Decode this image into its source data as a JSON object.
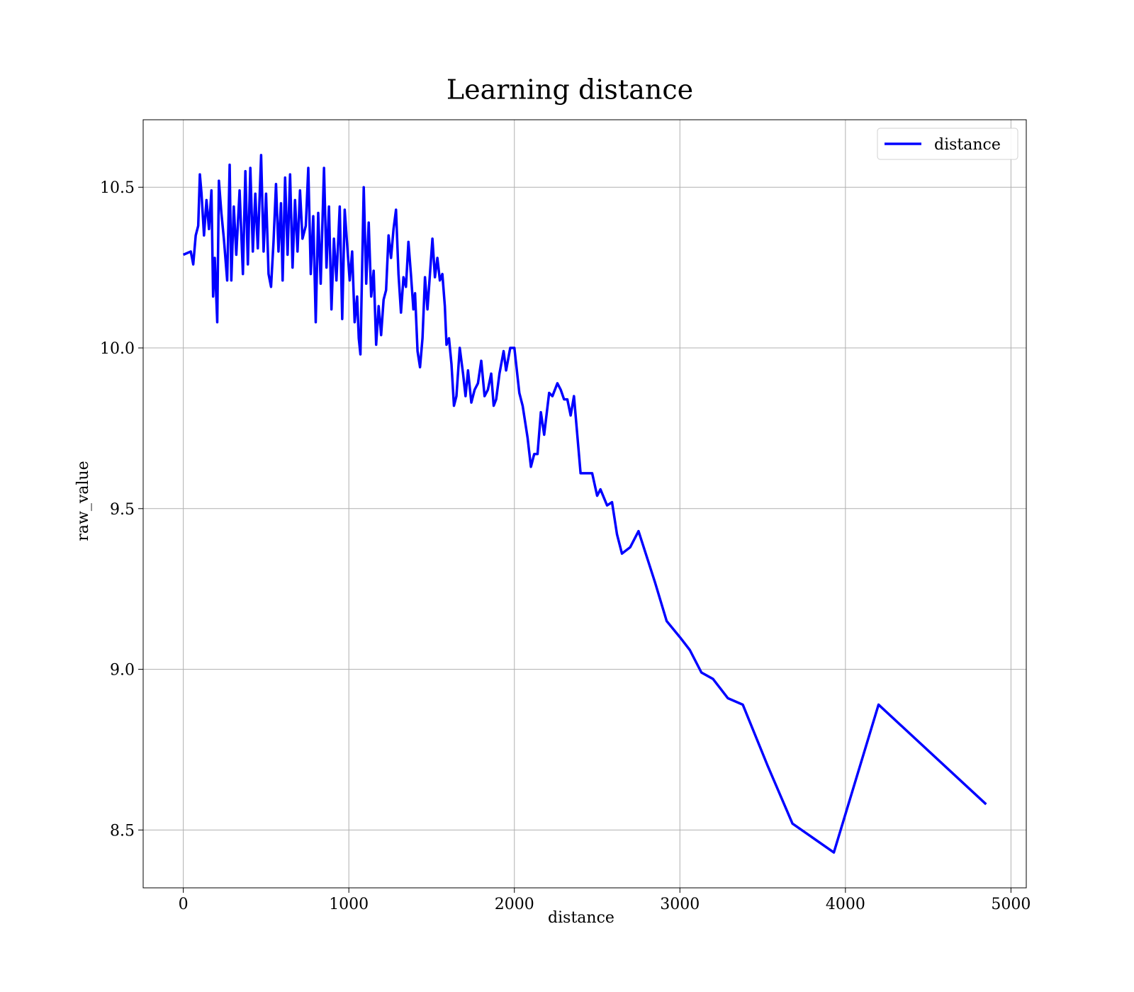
{
  "chart_data": {
    "type": "line",
    "title": "Learning distance",
    "xlabel": "distance",
    "ylabel": "raw_value",
    "x": [
      0,
      45,
      60,
      75,
      90,
      100,
      110,
      125,
      140,
      155,
      170,
      180,
      190,
      205,
      215,
      230,
      245,
      265,
      280,
      290,
      305,
      320,
      340,
      360,
      375,
      390,
      405,
      420,
      435,
      450,
      470,
      485,
      500,
      515,
      530,
      545,
      560,
      575,
      590,
      600,
      615,
      630,
      645,
      660,
      675,
      690,
      705,
      720,
      740,
      755,
      770,
      785,
      800,
      815,
      830,
      850,
      865,
      880,
      895,
      910,
      925,
      945,
      960,
      975,
      990,
      1005,
      1020,
      1035,
      1050,
      1060,
      1070,
      1090,
      1105,
      1120,
      1135,
      1150,
      1165,
      1180,
      1195,
      1210,
      1225,
      1240,
      1255,
      1270,
      1285,
      1300,
      1315,
      1330,
      1345,
      1360,
      1375,
      1390,
      1400,
      1415,
      1430,
      1445,
      1460,
      1475,
      1490,
      1505,
      1520,
      1535,
      1550,
      1565,
      1580,
      1590,
      1605,
      1620,
      1635,
      1650,
      1670,
      1690,
      1705,
      1720,
      1740,
      1760,
      1780,
      1800,
      1820,
      1840,
      1860,
      1875,
      1890,
      1910,
      1935,
      1950,
      1975,
      2000,
      2030,
      2050,
      2080,
      2100,
      2120,
      2140,
      2160,
      2180,
      2210,
      2230,
      2260,
      2280,
      2300,
      2320,
      2340,
      2360,
      2400,
      2440,
      2470,
      2500,
      2520,
      2560,
      2590,
      2620,
      2650,
      2700,
      2750,
      2850,
      2920,
      3000,
      3060,
      3130,
      3200,
      3290,
      3380,
      3530,
      3680,
      3930,
      4200,
      4850
    ],
    "series": [
      {
        "name": "distance",
        "color": "#0000ff",
        "values": [
          10.29,
          10.3,
          10.26,
          10.35,
          10.38,
          10.54,
          10.48,
          10.35,
          10.46,
          10.37,
          10.49,
          10.16,
          10.28,
          10.08,
          10.52,
          10.42,
          10.34,
          10.21,
          10.57,
          10.21,
          10.44,
          10.29,
          10.49,
          10.23,
          10.55,
          10.26,
          10.56,
          10.3,
          10.48,
          10.31,
          10.6,
          10.3,
          10.48,
          10.23,
          10.19,
          10.33,
          10.51,
          10.3,
          10.45,
          10.21,
          10.53,
          10.29,
          10.54,
          10.25,
          10.46,
          10.3,
          10.49,
          10.34,
          10.38,
          10.56,
          10.23,
          10.41,
          10.08,
          10.42,
          10.2,
          10.56,
          10.25,
          10.44,
          10.12,
          10.34,
          10.21,
          10.44,
          10.09,
          10.43,
          10.32,
          10.21,
          10.3,
          10.08,
          10.16,
          10.03,
          9.98,
          10.5,
          10.2,
          10.39,
          10.16,
          10.24,
          10.01,
          10.13,
          10.04,
          10.15,
          10.18,
          10.35,
          10.28,
          10.37,
          10.43,
          10.23,
          10.11,
          10.22,
          10.19,
          10.33,
          10.23,
          10.12,
          10.17,
          9.99,
          9.94,
          10.03,
          10.22,
          10.12,
          10.23,
          10.34,
          10.22,
          10.28,
          10.21,
          10.23,
          10.13,
          10.01,
          10.03,
          9.95,
          9.82,
          9.85,
          10.0,
          9.92,
          9.85,
          9.93,
          9.83,
          9.87,
          9.89,
          9.96,
          9.85,
          9.87,
          9.92,
          9.82,
          9.84,
          9.92,
          9.99,
          9.93,
          10.0,
          10.0,
          9.86,
          9.82,
          9.72,
          9.63,
          9.67,
          9.67,
          9.8,
          9.73,
          9.86,
          9.85,
          9.89,
          9.87,
          9.84,
          9.84,
          9.79,
          9.85,
          9.61,
          9.61,
          9.61,
          9.54,
          9.56,
          9.51,
          9.52,
          9.42,
          9.36,
          9.38,
          9.43,
          9.27,
          9.15,
          9.1,
          9.06,
          8.99,
          8.97,
          8.91,
          8.89,
          8.7,
          8.52,
          8.43,
          8.89,
          8.58
        ]
      }
    ],
    "xlim": [
      -242.5,
      5092.5
    ],
    "xticks": [
      0,
      1000,
      2000,
      3000,
      4000,
      5000
    ],
    "ylim": [
      8.32,
      10.71
    ],
    "yticks": [
      8.5,
      {
        "value": 9,
        "label": "9.0"
      },
      9.5,
      {
        "value": 10,
        "label": "10.0"
      },
      10.5
    ],
    "grid": true,
    "legend": "upper right"
  }
}
